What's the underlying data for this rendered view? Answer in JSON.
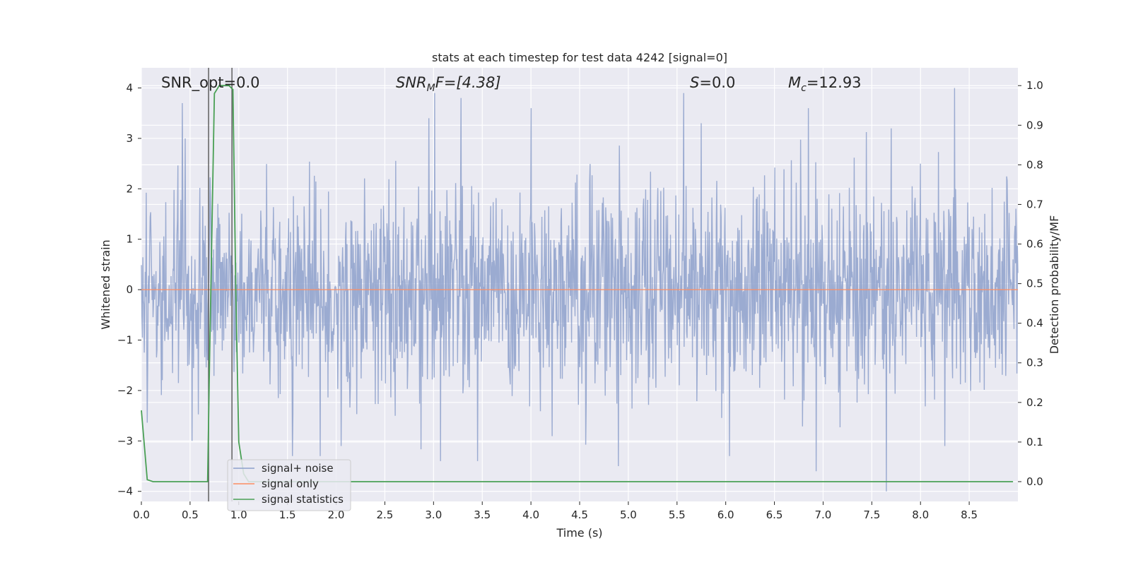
{
  "chart_data": {
    "type": "line",
    "title": "stats at each timestep for test data 4242 [signal=0]",
    "xlabel": "Time (s)",
    "ylabel": "Whitened strain",
    "ylabel_right": "Detection probability/MF",
    "xlim": [
      0.0,
      9.0
    ],
    "ylim": [
      -4.2,
      4.4
    ],
    "ylim_right": [
      -0.05,
      1.045
    ],
    "x_ticks": [
      0.0,
      0.5,
      1.0,
      1.5,
      2.0,
      2.5,
      3.0,
      3.5,
      4.0,
      4.5,
      5.0,
      5.5,
      6.0,
      6.5,
      7.0,
      7.5,
      8.0,
      8.5
    ],
    "x_tick_labels": [
      "0.0",
      "0.5",
      "1.0",
      "1.5",
      "2.0",
      "2.5",
      "3.0",
      "3.5",
      "4.0",
      "4.5",
      "5.0",
      "5.5",
      "6.0",
      "6.5",
      "7.0",
      "7.5",
      "8.0",
      "8.5"
    ],
    "y_ticks": [
      -4,
      -3,
      -2,
      -1,
      0,
      1,
      2,
      3,
      4
    ],
    "y_tick_labels": [
      "−4",
      "−3",
      "−2",
      "−1",
      "0",
      "1",
      "2",
      "3",
      "4"
    ],
    "y_right_ticks": [
      0.0,
      0.1,
      0.2,
      0.3,
      0.4,
      0.5,
      0.6,
      0.7,
      0.8,
      0.9,
      1.0
    ],
    "y_right_tick_labels": [
      "0.0",
      "0.1",
      "0.2",
      "0.3",
      "0.4",
      "0.5",
      "0.6",
      "0.7",
      "0.8",
      "0.9",
      "1.0"
    ],
    "grid": true,
    "legend_position": "bottom-left",
    "annotations": {
      "snr_opt": "SNR_opt=0.0",
      "snr_mf_main": "SNR",
      "snr_mf_sub": "M",
      "snr_mf_rest": "F=[4.38]",
      "s_main": "S",
      "s_rest": "=0.0",
      "mc_main": "M",
      "mc_sub": "c",
      "mc_rest": "=12.93"
    },
    "series": [
      {
        "name": "signal+ noise",
        "axis": "left",
        "color": "#8da0cb",
        "style": "dense noise, std approx 1.0, range approx -4 to 4",
        "noise_std": 1.0,
        "noise_samples": 1800,
        "spikes": [
          {
            "x": 0.42,
            "y": 3.7
          },
          {
            "x": 0.45,
            "y": 3.0
          },
          {
            "x": 0.52,
            "y": -3.0
          },
          {
            "x": 1.55,
            "y": -3.3
          },
          {
            "x": 2.05,
            "y": -3.1
          },
          {
            "x": 2.95,
            "y": 3.4
          },
          {
            "x": 3.01,
            "y": 3.9
          },
          {
            "x": 3.07,
            "y": -3.4
          },
          {
            "x": 3.28,
            "y": 3.8
          },
          {
            "x": 3.45,
            "y": -3.4
          },
          {
            "x": 4.0,
            "y": 3.6
          },
          {
            "x": 4.9,
            "y": -3.5
          },
          {
            "x": 5.57,
            "y": 3.9
          },
          {
            "x": 5.75,
            "y": 3.3
          },
          {
            "x": 6.04,
            "y": -3.3
          },
          {
            "x": 6.85,
            "y": 3.6
          },
          {
            "x": 6.93,
            "y": -3.6
          },
          {
            "x": 7.65,
            "y": -4.0
          },
          {
            "x": 7.7,
            "y": 3.2
          },
          {
            "x": 8.25,
            "y": -3.1
          },
          {
            "x": 8.35,
            "y": 4.0
          }
        ]
      },
      {
        "name": "signal only",
        "axis": "left",
        "color": "#fc8d62",
        "x": [
          0.0,
          9.0
        ],
        "y": [
          0.0,
          0.0
        ]
      },
      {
        "name": "signal statistics",
        "axis": "right",
        "color": "#4aa055",
        "x": [
          0.0,
          0.06,
          0.12,
          0.2,
          0.4,
          0.6,
          0.68,
          0.7,
          0.75,
          0.8,
          0.85,
          0.9,
          0.94,
          0.97,
          1.0,
          1.05,
          1.1,
          1.2,
          2.0,
          3.0,
          4.0,
          5.0,
          6.0,
          7.0,
          8.0,
          8.95
        ],
        "y": [
          0.18,
          0.005,
          0.0,
          0.0,
          0.0,
          0.0,
          0.0,
          0.3,
          0.98,
          1.0,
          1.0,
          1.0,
          0.99,
          0.48,
          0.1,
          0.02,
          0.0,
          0.0,
          0.0,
          0.0,
          0.0,
          0.0,
          0.0,
          0.0,
          0.0,
          0.0
        ]
      }
    ],
    "vertical_lines": [
      {
        "x": 0.69,
        "color": "#555555"
      },
      {
        "x": 0.93,
        "color": "#555555"
      }
    ]
  }
}
